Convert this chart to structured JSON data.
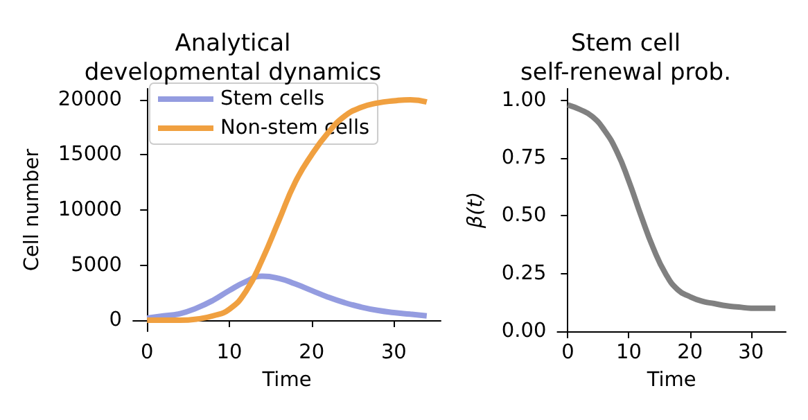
{
  "chart_data": [
    {
      "type": "line",
      "title": "Analytical\ndevelopmental dynamics",
      "xlabel": "Time",
      "ylabel": "Cell number",
      "x": [
        0,
        2,
        4,
        6,
        8,
        10,
        12,
        14,
        16,
        18,
        20,
        22,
        24,
        26,
        28,
        30,
        32,
        34
      ],
      "series": [
        {
          "name": "Stem cells",
          "color": "#949ce0",
          "values": [
            200,
            400,
            600,
            1100,
            1800,
            2700,
            3500,
            4000,
            3800,
            3300,
            2700,
            2100,
            1600,
            1200,
            900,
            700,
            550,
            400
          ]
        },
        {
          "name": "Non-stem cells",
          "color": "#f0a040",
          "values": [
            0,
            0,
            0,
            100,
            400,
            1000,
            2600,
            5500,
            9000,
            12500,
            15000,
            17000,
            18500,
            19300,
            19700,
            19900,
            20000,
            19800
          ]
        }
      ],
      "xlim": [
        -1.7,
        35.7
      ],
      "xticks": [
        0,
        10,
        20,
        30
      ],
      "ylim": [
        -1000,
        21000
      ],
      "yticks": [
        0,
        5000,
        10000,
        15000,
        20000
      ],
      "legend": "top left",
      "grid": false
    },
    {
      "type": "line",
      "title": "Stem cell\nself-renewal prob.",
      "xlabel": "Time",
      "ylabel": "β(t)",
      "x": [
        0,
        2,
        4,
        6,
        8,
        10,
        12,
        14,
        16,
        18,
        20,
        22,
        24,
        26,
        28,
        30,
        32,
        34
      ],
      "series": [
        {
          "color": "#808080",
          "values": [
            0.98,
            0.96,
            0.93,
            0.87,
            0.78,
            0.65,
            0.5,
            0.36,
            0.25,
            0.18,
            0.15,
            0.13,
            0.12,
            0.11,
            0.105,
            0.1,
            0.1,
            0.1
          ]
        }
      ],
      "xlim": [
        -1.7,
        35.7
      ],
      "xticks": [
        0,
        10,
        20,
        30
      ],
      "ylim": [
        0,
        1.05
      ],
      "yticks": [
        {
          "value": 0,
          "label": "0.00"
        },
        {
          "value": 0.25,
          "label": "0.25"
        },
        {
          "value": 0.5,
          "label": "0.50"
        },
        {
          "value": 0.75,
          "label": "0.75"
        },
        {
          "value": 1,
          "label": "1.00"
        }
      ],
      "grid": false
    }
  ]
}
